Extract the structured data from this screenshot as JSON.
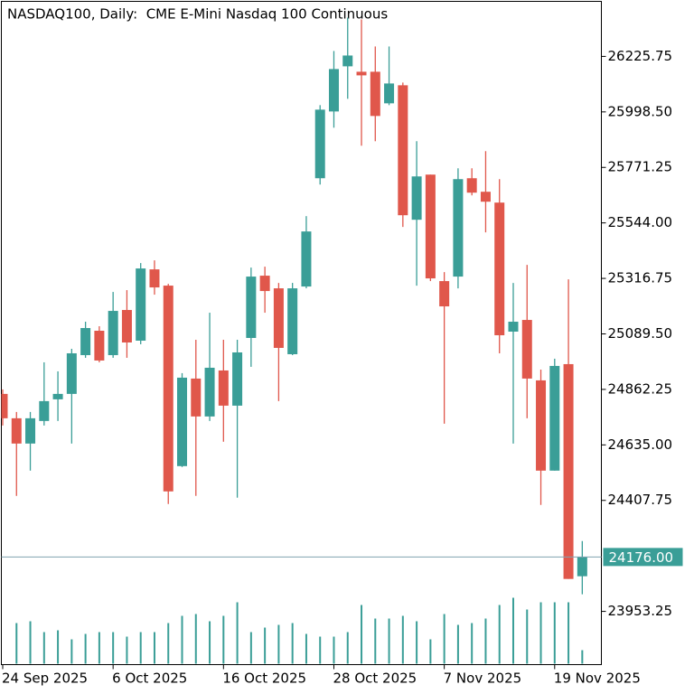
{
  "chart_data": {
    "type": "candlestick",
    "title": "NASDAQ100, Daily:  CME E-Mini Nasdaq 100 Continuous",
    "categories": [
      "24 Sep 2025",
      null,
      null,
      null,
      null,
      null,
      null,
      null,
      "6 Oct 2025",
      null,
      null,
      null,
      null,
      null,
      null,
      null,
      "16 Oct 2025",
      null,
      null,
      null,
      null,
      null,
      null,
      null,
      "28 Oct 2025",
      null,
      null,
      null,
      null,
      null,
      null,
      null,
      "7 Nov 2025",
      null,
      null,
      null,
      null,
      null,
      null,
      null,
      "19 Nov 2025",
      null,
      null
    ],
    "open": [
      24843.8,
      24744.0,
      24640.5,
      24732.9,
      24821.6,
      24843.8,
      25002.6,
      25102.4,
      25002.6,
      25187.4,
      25061.8,
      25353.7,
      25287.2,
      24548.1,
      24906.6,
      24751.4,
      24939.8,
      24795.7,
      25072.9,
      25327.9,
      25276.1,
      25006.3,
      25283.5,
      25726.9,
      26000.3,
      26185.1,
      26162.9,
      26162.9,
      26033.6,
      26107.5,
      25556.9,
      25741.7,
      25305.7,
      25324.2,
      25726.9,
      25671.5,
      25627.1,
      25098.8,
      25146.7,
      24899.2,
      24529.6,
      24965.7,
      24097.2
    ],
    "high": [
      24862.2,
      24769.9,
      24769.9,
      24973.1,
      24936.1,
      25028.5,
      25139.4,
      25120.9,
      25261.3,
      25268.7,
      25379.6,
      25390.6,
      25294.6,
      24928.8,
      25065.5,
      25176.3,
      25065.5,
      25065.5,
      25361.1,
      25364.8,
      25298.3,
      25298.3,
      25571.7,
      26026.2,
      26247.9,
      26384.6,
      26377.2,
      26266.4,
      26266.4,
      26118.6,
      25878.4,
      25741.7,
      25342.6,
      25767.6,
      25767.6,
      25837.8,
      25723.2,
      25298.3,
      25372.2,
      24943.5,
      24987.9,
      25313.1,
      24241.3
    ],
    "low": [
      24714.4,
      24426.1,
      24529.6,
      24714.4,
      24732.9,
      24640.5,
      24991.6,
      24973.1,
      24991.6,
      24991.6,
      25047.0,
      25250.2,
      24392.8,
      24544.4,
      24426.1,
      24732.9,
      24647.9,
      24418.7,
      24954.6,
      25176.3,
      24814.2,
      25002.6,
      25276.1,
      25701.0,
      25933.8,
      26052.1,
      25859.9,
      25878.4,
      26026.2,
      25527.4,
      25287.2,
      25305.7,
      24721.8,
      25276.1,
      25656.7,
      25505.2,
      25010.0,
      24640.5,
      24744.0,
      24389.1,
      24529.6,
      24086.1,
      24023.3
    ],
    "close": [
      24744.0,
      24640.5,
      24744.0,
      24814.2,
      24843.8,
      25010.0,
      25113.5,
      24980.5,
      25183.7,
      25054.4,
      25357.4,
      25279.8,
      24444.6,
      24910.3,
      24751.4,
      24950.9,
      24795.7,
      25013.7,
      25324.2,
      25265.0,
      25032.2,
      25276.1,
      25508.9,
      26007.7,
      26174.0,
      26229.4,
      26148.1,
      25981.8,
      26114.9,
      25575.4,
      25734.3,
      25316.8,
      25202.2,
      25723.2,
      25667.8,
      25630.8,
      25084.0,
      25139.4,
      24906.6,
      24529.6,
      24958.3,
      24086.1,
      24176.0
    ],
    "volume": [
      null,
      45,
      47,
      35,
      37,
      27,
      33,
      35,
      35,
      30,
      35,
      35,
      45,
      53,
      55,
      47,
      53,
      68,
      35,
      40,
      43,
      45,
      33,
      30,
      30,
      35,
      65,
      50,
      50,
      53,
      47,
      27,
      55,
      43,
      45,
      50,
      65,
      73,
      60,
      68,
      68,
      68,
      15
    ],
    "volume_lim": [
      0,
      100
    ],
    "up_color": "#3a9e97",
    "down_color": "#e0574b",
    "volume_color": "#3a9e97",
    "ylim": [
      23735.25,
      26451.15
    ],
    "yticks": [
      26225.75,
      {
        "value": 25998.5,
        "label": "25998.50"
      },
      25771.25,
      {
        "value": 25544,
        "label": "25544.00"
      },
      25316.75,
      {
        "value": 25089.5,
        "label": "25089.50"
      },
      24862.25,
      {
        "value": 24635,
        "label": "24635.00"
      },
      24407.75,
      23953.25
    ],
    "price_line": {
      "value": 24176,
      "label": "24176.00"
    },
    "price_line_color": "#7fa3b0"
  }
}
